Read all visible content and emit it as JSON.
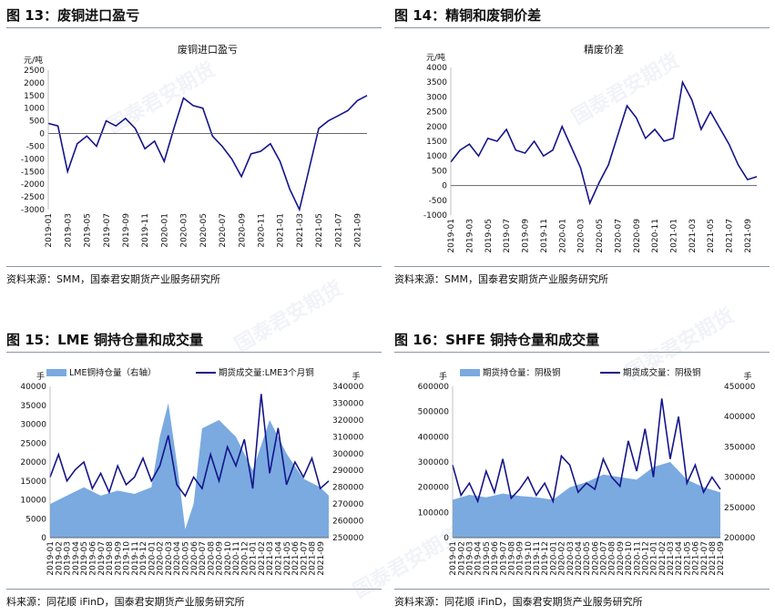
{
  "watermark": "国泰君安期货",
  "colors": {
    "navy": "#14148a",
    "lightblue": "#7aaae0",
    "rule": "#8a96a8"
  },
  "panels": [
    {
      "title": "图 13：废铜进口盈亏",
      "source": "资料来源：SMM，国泰君安期货产业服务研究所"
    },
    {
      "title": "图 14：精铜和废铜价差",
      "source": "资料来源：SMM，国泰君安期货产业服务研究所"
    },
    {
      "title": "图 15：LME 铜持仓量和成交量",
      "source": "料来源：同花顺 iFinD，国泰君安期货产业服务研究所"
    },
    {
      "title": "图 16：SHFE 铜持仓量和成交量",
      "source": "资料来源：同花顺 iFinD，国泰君安期货产业服务研究所"
    }
  ],
  "chart_data": [
    {
      "type": "line",
      "title": "废铜进口盈亏",
      "ylabel": "元/吨",
      "ylim": [
        -3000,
        2500
      ],
      "yticks": [
        -3000,
        -2500,
        -2000,
        -1500,
        -1000,
        -500,
        0,
        500,
        1000,
        1500,
        2000,
        2500
      ],
      "x_range": [
        "2019-01",
        "2021-10"
      ],
      "xticks": [
        "2019-01",
        "2019-03",
        "2019-05",
        "2019-07",
        "2019-09",
        "2019-11",
        "2020-01",
        "2020-03",
        "2020-05",
        "2020-07",
        "2020-09",
        "2020-11",
        "2021-01",
        "2021-03",
        "2021-05",
        "2021-07",
        "2021-09"
      ],
      "series": [
        {
          "name": "",
          "x": [
            "2019-01",
            "2019-02",
            "2019-03",
            "2019-04",
            "2019-05",
            "2019-06",
            "2019-07",
            "2019-08",
            "2019-09",
            "2019-10",
            "2019-11",
            "2019-12",
            "2020-01",
            "2020-02",
            "2020-03",
            "2020-04",
            "2020-05",
            "2020-06",
            "2020-07",
            "2020-08",
            "2020-09",
            "2020-10",
            "2020-11",
            "2020-12",
            "2021-01",
            "2021-02",
            "2021-03",
            "2021-04",
            "2021-05",
            "2021-06",
            "2021-07",
            "2021-08",
            "2021-09",
            "2021-10"
          ],
          "values": [
            400,
            300,
            -1500,
            -400,
            -100,
            -500,
            500,
            300,
            600,
            200,
            -600,
            -300,
            -1100,
            200,
            1400,
            1100,
            1000,
            -100,
            -500,
            -1000,
            -1700,
            -800,
            -700,
            -400,
            -1100,
            -2200,
            -3000,
            -1400,
            200,
            500,
            700,
            900,
            1300,
            1500
          ]
        }
      ]
    },
    {
      "type": "line",
      "title": "精废价差",
      "ylabel": "元/吨",
      "ylim": [
        -1000,
        4000
      ],
      "yticks": [
        -1000,
        -500,
        0,
        500,
        1000,
        1500,
        2000,
        2500,
        3000,
        3500,
        4000
      ],
      "x_range": [
        "2019-01",
        "2021-10"
      ],
      "xticks": [
        "2019-01",
        "2019-03",
        "2019-05",
        "2019-07",
        "2019-09",
        "2019-11",
        "2020-01",
        "2020-03",
        "2020-05",
        "2020-07",
        "2020-09",
        "2020-11",
        "2021-01",
        "2021-03",
        "2021-05",
        "2021-07",
        "2021-09"
      ],
      "series": [
        {
          "name": "",
          "x": [
            "2019-01",
            "2019-02",
            "2019-03",
            "2019-04",
            "2019-05",
            "2019-06",
            "2019-07",
            "2019-08",
            "2019-09",
            "2019-10",
            "2019-11",
            "2019-12",
            "2020-01",
            "2020-02",
            "2020-03",
            "2020-04",
            "2020-05",
            "2020-06",
            "2020-07",
            "2020-08",
            "2020-09",
            "2020-10",
            "2020-11",
            "2020-12",
            "2021-01",
            "2021-02",
            "2021-03",
            "2021-04",
            "2021-05",
            "2021-07",
            "2021-08",
            "2021-09",
            "2021-10"
          ],
          "values": [
            800,
            1200,
            1400,
            1000,
            1600,
            1500,
            1900,
            1200,
            1100,
            1500,
            1000,
            1200,
            2000,
            1300,
            600,
            -600,
            100,
            700,
            1700,
            2700,
            2300,
            1600,
            1900,
            1500,
            1600,
            3500,
            2900,
            1900,
            2500,
            1400,
            700,
            200,
            300
          ]
        }
      ]
    },
    {
      "type": "area",
      "title": "",
      "ylabel": "手",
      "y2label": "手",
      "ylim": [
        0,
        40000
      ],
      "yticks": [
        0,
        5000,
        10000,
        15000,
        20000,
        25000,
        30000,
        35000,
        40000
      ],
      "y2lim": [
        250000,
        340000
      ],
      "y2ticks": [
        250000,
        260000,
        270000,
        280000,
        290000,
        300000,
        310000,
        320000,
        330000,
        340000
      ],
      "x_range": [
        "2019-01",
        "2021-10"
      ],
      "xticks": [
        "2019-01",
        "2019-02",
        "2019-03",
        "2019-04",
        "2019-05",
        "2019-06",
        "2019-07",
        "2019-08",
        "2019-09",
        "2019-10",
        "2019-11",
        "2019-12",
        "2020-01",
        "2020-02",
        "2020-03",
        "2020-04",
        "2020-05",
        "2020-06",
        "2020-07",
        "2020-08",
        "2020-09",
        "2020-10",
        "2020-11",
        "2020-12",
        "2021-01",
        "2021-02",
        "2021-03",
        "2021-04",
        "2021-05",
        "2021-06",
        "2021-07",
        "2021-08",
        "2021-09"
      ],
      "series": [
        {
          "name": "LME铜持仓量（右轴）",
          "axis": "right",
          "x": [
            "2019-01",
            "2019-03",
            "2019-05",
            "2019-07",
            "2019-09",
            "2019-11",
            "2020-01",
            "2020-02",
            "2020-03",
            "2020-04",
            "2020-05",
            "2020-06",
            "2020-07",
            "2020-09",
            "2020-11",
            "2021-01",
            "2021-03",
            "2021-04",
            "2021-05",
            "2021-07",
            "2021-09",
            "2021-10"
          ],
          "values": [
            270000,
            275000,
            280000,
            275000,
            278000,
            276000,
            280000,
            310000,
            330000,
            295000,
            255000,
            270000,
            315000,
            320000,
            310000,
            290000,
            320000,
            310000,
            300000,
            285000,
            280000,
            275000
          ]
        },
        {
          "name": "期货成交量:LME3个月铜",
          "axis": "left",
          "x": [
            "2019-01",
            "2019-02",
            "2019-03",
            "2019-04",
            "2019-05",
            "2019-06",
            "2019-07",
            "2019-08",
            "2019-09",
            "2019-10",
            "2019-11",
            "2019-12",
            "2020-01",
            "2020-02",
            "2020-03",
            "2020-04",
            "2020-05",
            "2020-06",
            "2020-07",
            "2020-08",
            "2020-09",
            "2020-10",
            "2020-11",
            "2020-12",
            "2021-01",
            "2021-02",
            "2021-03",
            "2021-04",
            "2021-05",
            "2021-06",
            "2021-07",
            "2021-08",
            "2021-09",
            "2021-10"
          ],
          "values": [
            16000,
            22000,
            15000,
            18000,
            20000,
            13000,
            17000,
            12000,
            19000,
            14000,
            16000,
            21000,
            15000,
            19000,
            27000,
            14000,
            11000,
            16000,
            13000,
            22000,
            15000,
            24000,
            19000,
            26000,
            13000,
            38000,
            17000,
            29000,
            14000,
            20000,
            16000,
            21000,
            13000,
            15000
          ]
        }
      ]
    },
    {
      "type": "area",
      "title": "",
      "ylabel": "手",
      "y2label": "手",
      "ylim": [
        0,
        600000
      ],
      "yticks": [
        0,
        100000,
        200000,
        300000,
        400000,
        500000,
        600000
      ],
      "y2lim": [
        200000,
        450000
      ],
      "y2ticks": [
        200000,
        250000,
        300000,
        350000,
        400000,
        450000
      ],
      "x_range": [
        "2019-01",
        "2021-09"
      ],
      "xticks": [
        "2019-01",
        "2019-02",
        "2019-03",
        "2019-04",
        "2019-05",
        "2019-06",
        "2019-07",
        "2019-08",
        "2019-09",
        "2019-10",
        "2019-11",
        "2019-12",
        "2020-01",
        "2020-02",
        "2020-03",
        "2020-04",
        "2020-05",
        "2020-06",
        "2020-07",
        "2020-08",
        "2020-09",
        "2020-10",
        "2020-11",
        "2020-12",
        "2021-01",
        "2021-02",
        "2021-03",
        "2021-04",
        "2021-05",
        "2021-06",
        "2021-07",
        "2021-08",
        "2021-09"
      ],
      "series": [
        {
          "name": "期货持仓量：阴极铜",
          "axis": "left",
          "x": [
            "2019-01",
            "2019-03",
            "2019-05",
            "2019-07",
            "2019-09",
            "2019-11",
            "2020-01",
            "2020-03",
            "2020-05",
            "2020-07",
            "2020-09",
            "2020-11",
            "2021-01",
            "2021-03",
            "2021-05",
            "2021-07",
            "2021-09"
          ],
          "values": [
            150000,
            170000,
            160000,
            175000,
            165000,
            160000,
            150000,
            200000,
            220000,
            250000,
            240000,
            230000,
            280000,
            300000,
            230000,
            200000,
            180000
          ]
        },
        {
          "name": "期货成交量：阴极铜",
          "axis": "right",
          "x": [
            "2019-01",
            "2019-02",
            "2019-03",
            "2019-04",
            "2019-05",
            "2019-06",
            "2019-07",
            "2019-08",
            "2019-09",
            "2019-10",
            "2019-11",
            "2019-12",
            "2020-01",
            "2020-02",
            "2020-03",
            "2020-04",
            "2020-05",
            "2020-06",
            "2020-07",
            "2020-08",
            "2020-09",
            "2020-10",
            "2020-11",
            "2020-12",
            "2021-01",
            "2021-02",
            "2021-03",
            "2021-04",
            "2021-05",
            "2021-06",
            "2021-07",
            "2021-08",
            "2021-09"
          ],
          "values": [
            320000,
            270000,
            290000,
            260000,
            310000,
            275000,
            330000,
            265000,
            280000,
            300000,
            270000,
            290000,
            260000,
            335000,
            320000,
            275000,
            290000,
            280000,
            330000,
            300000,
            285000,
            360000,
            310000,
            380000,
            300000,
            430000,
            330000,
            400000,
            290000,
            320000,
            275000,
            300000,
            280000
          ]
        }
      ]
    }
  ]
}
